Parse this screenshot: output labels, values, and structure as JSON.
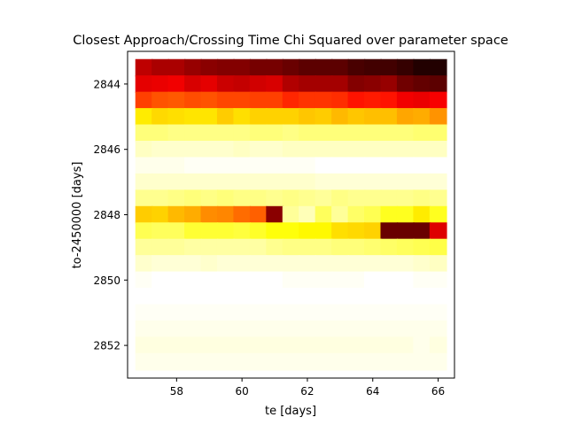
{
  "chart_data": {
    "type": "heatmap",
    "title": "Closest Approach/Crossing Time Chi Squared over parameter space",
    "xlabel": "te [days]",
    "ylabel": "to-2450000 [days]",
    "xlim": [
      56.5,
      66.5
    ],
    "ylim": [
      2853,
      2843
    ],
    "x_ticks": [
      58,
      60,
      62,
      64,
      66
    ],
    "y_ticks": [
      2844,
      2846,
      2848,
      2850,
      2852
    ],
    "x_centers": [
      57,
      57.5,
      58,
      58.5,
      59,
      59.5,
      60,
      60.5,
      61,
      61.5,
      62,
      62.5,
      63,
      63.5,
      64,
      64.5,
      65,
      65.5,
      66
    ],
    "y_centers": [
      2843.5,
      2844,
      2844.5,
      2845,
      2845.5,
      2846,
      2846.5,
      2847,
      2847.5,
      2848,
      2848.5,
      2849,
      2849.5,
      2850,
      2850.5,
      2851,
      2851.5,
      2852,
      2852.5
    ],
    "colormap": "hot",
    "value_range": [
      0,
      1
    ],
    "values": [
      [
        0.25,
        0.22,
        0.22,
        0.19,
        0.17,
        0.16,
        0.16,
        0.14,
        0.14,
        0.12,
        0.1,
        0.1,
        0.1,
        0.07,
        0.06,
        0.06,
        0.04,
        0.01,
        0.01
      ],
      [
        0.31,
        0.32,
        0.33,
        0.29,
        0.31,
        0.27,
        0.26,
        0.28,
        0.29,
        0.23,
        0.21,
        0.21,
        0.21,
        0.16,
        0.17,
        0.19,
        0.13,
        0.11,
        0.1
      ],
      [
        0.45,
        0.48,
        0.49,
        0.47,
        0.48,
        0.46,
        0.46,
        0.45,
        0.45,
        0.41,
        0.43,
        0.43,
        0.42,
        0.38,
        0.39,
        0.38,
        0.33,
        0.32,
        0.34
      ],
      [
        0.72,
        0.69,
        0.7,
        0.71,
        0.71,
        0.67,
        0.7,
        0.68,
        0.68,
        0.68,
        0.66,
        0.67,
        0.64,
        0.66,
        0.65,
        0.65,
        0.61,
        0.62,
        0.58
      ],
      [
        0.87,
        0.87,
        0.88,
        0.88,
        0.88,
        0.88,
        0.88,
        0.87,
        0.87,
        0.88,
        0.87,
        0.87,
        0.87,
        0.87,
        0.87,
        0.87,
        0.87,
        0.86,
        0.86
      ],
      [
        0.94,
        0.95,
        0.95,
        0.95,
        0.95,
        0.95,
        0.94,
        0.95,
        0.95,
        0.94,
        0.94,
        0.94,
        0.94,
        0.94,
        0.94,
        0.94,
        0.94,
        0.94,
        0.94
      ],
      [
        0.98,
        0.98,
        0.98,
        0.99,
        0.99,
        0.99,
        0.99,
        0.99,
        0.99,
        0.99,
        0.99,
        1.0,
        1.0,
        1.0,
        1.0,
        1.0,
        1.0,
        1.0,
        1.0
      ],
      [
        0.95,
        0.95,
        0.95,
        0.95,
        0.95,
        0.95,
        0.95,
        0.95,
        0.95,
        0.95,
        0.95,
        0.96,
        0.96,
        0.96,
        0.96,
        0.96,
        0.96,
        0.96,
        0.96
      ],
      [
        0.89,
        0.89,
        0.88,
        0.87,
        0.88,
        0.87,
        0.88,
        0.88,
        0.89,
        0.88,
        0.89,
        0.9,
        0.88,
        0.89,
        0.89,
        0.89,
        0.89,
        0.88,
        0.89
      ],
      [
        0.67,
        0.68,
        0.64,
        0.62,
        0.57,
        0.56,
        0.52,
        0.5,
        0.17,
        0.9,
        0.93,
        0.84,
        0.9,
        0.85,
        0.83,
        0.78,
        0.78,
        0.72,
        0.78
      ],
      [
        0.83,
        0.84,
        0.84,
        0.8,
        0.8,
        0.8,
        0.81,
        0.79,
        0.76,
        0.76,
        0.74,
        0.74,
        0.7,
        0.69,
        0.68,
        0.12,
        0.12,
        0.12,
        0.3
      ],
      [
        0.9,
        0.9,
        0.9,
        0.91,
        0.91,
        0.91,
        0.91,
        0.91,
        0.89,
        0.88,
        0.88,
        0.88,
        0.87,
        0.87,
        0.86,
        0.85,
        0.84,
        0.83,
        0.82
      ],
      [
        0.95,
        0.96,
        0.96,
        0.96,
        0.95,
        0.96,
        0.96,
        0.96,
        0.96,
        0.96,
        0.96,
        0.96,
        0.96,
        0.96,
        0.96,
        0.96,
        0.96,
        0.95,
        0.94
      ],
      [
        0.99,
        1.0,
        1.0,
        1.0,
        1.0,
        1.0,
        1.0,
        1.0,
        1.0,
        0.99,
        0.99,
        0.99,
        0.99,
        0.99,
        1.0,
        1.0,
        1.0,
        0.99,
        0.99
      ],
      [
        1.0,
        1.0,
        1.0,
        1.0,
        1.0,
        1.0,
        1.0,
        1.0,
        1.0,
        1.0,
        1.0,
        1.0,
        1.0,
        1.0,
        1.0,
        1.0,
        1.0,
        1.0,
        1.0
      ],
      [
        0.99,
        0.99,
        0.99,
        0.99,
        0.99,
        0.99,
        0.99,
        0.99,
        0.99,
        0.99,
        0.99,
        0.99,
        0.99,
        0.99,
        0.99,
        0.99,
        0.99,
        0.99,
        0.99
      ],
      [
        0.98,
        0.98,
        0.98,
        0.98,
        0.98,
        0.98,
        0.98,
        0.98,
        0.98,
        0.98,
        0.98,
        0.98,
        0.98,
        0.98,
        0.98,
        0.98,
        0.98,
        0.98,
        0.98
      ],
      [
        0.97,
        0.97,
        0.97,
        0.97,
        0.97,
        0.97,
        0.97,
        0.97,
        0.97,
        0.97,
        0.97,
        0.97,
        0.97,
        0.97,
        0.97,
        0.97,
        0.97,
        0.98,
        0.97
      ],
      [
        0.98,
        0.98,
        0.98,
        0.98,
        0.98,
        0.98,
        0.98,
        0.98,
        0.98,
        0.98,
        0.98,
        0.98,
        0.98,
        0.98,
        0.98,
        0.98,
        0.98,
        0.98,
        0.98
      ]
    ]
  }
}
